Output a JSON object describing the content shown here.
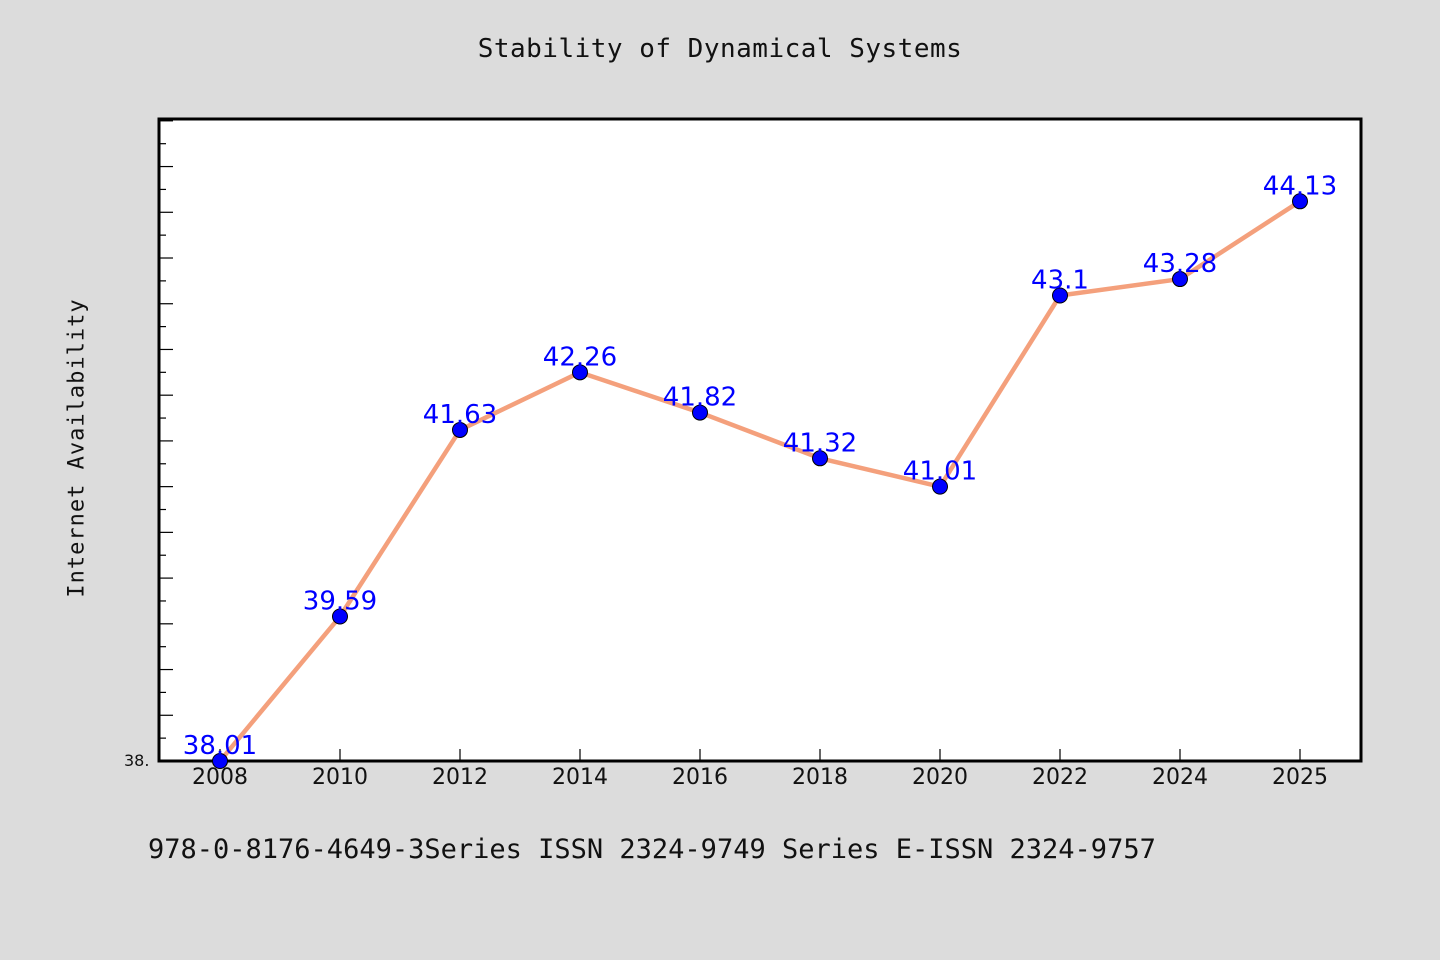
{
  "chart_data": {
    "type": "line",
    "title": "Stability of Dynamical Systems",
    "ylabel": "Internet Availability",
    "xlabel": "",
    "x": [
      "2008",
      "2010",
      "2012",
      "2014",
      "2016",
      "2018",
      "2020",
      "2022",
      "2024",
      "2025"
    ],
    "series": [
      {
        "values": [
          38.01,
          39.59,
          41.63,
          42.26,
          41.82,
          41.32,
          41.01,
          43.1,
          43.28,
          44.13
        ],
        "data_labels": [
          "38.01",
          "39.59",
          "41.63",
          "42.26",
          "41.82",
          "41.32",
          "41.01",
          "43.1",
          "43.28",
          "44.13"
        ]
      }
    ],
    "ylim": [
      38.01,
      45.03
    ],
    "y_tick_label": "38.",
    "grid": false,
    "line_color": "#f4a07c",
    "marker_color": "#0000ff",
    "label_color": "#0000ff"
  },
  "footer": {
    "text": "978-0-8176-4649-3Series ISSN 2324-9749 Series E-ISSN 2324-9757"
  }
}
